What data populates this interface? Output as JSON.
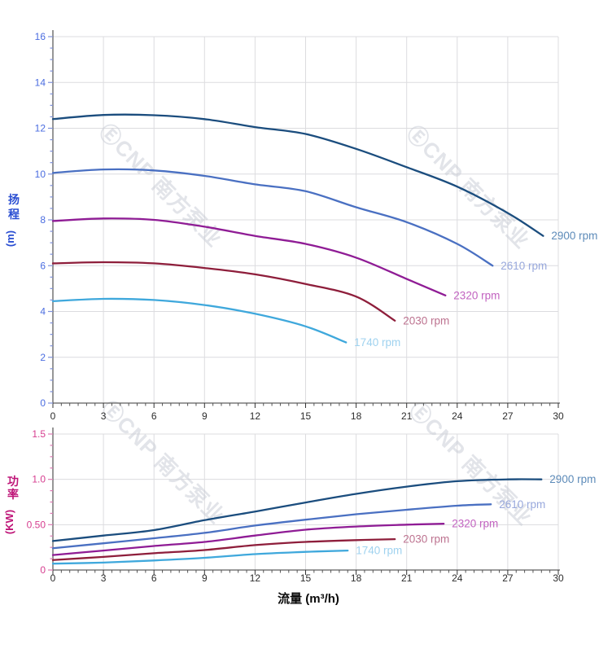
{
  "page": {
    "background": "#ffffff"
  },
  "watermark": {
    "logo_glyph": "Ⓔ",
    "text": "CNP 南方泵业",
    "color": "#c6c9d4",
    "opacity": 0.5
  },
  "chart_data": [
    {
      "type": "line",
      "id": "head-curves",
      "title": "",
      "xlabel": "",
      "ylabel_cjk": "扬程",
      "ylabel_unit": "(m)",
      "xlim": [
        0,
        30
      ],
      "ylim": [
        0,
        16
      ],
      "x_major": 3,
      "x_minor": 0.5,
      "y_major": 2,
      "y_minor": 0.5,
      "x_tick_labels": [
        "0",
        "3",
        "6",
        "9",
        "12",
        "15",
        "18",
        "21",
        "24",
        "27",
        "30"
      ],
      "y_tick_labels": [
        "0",
        "2",
        "4",
        "6",
        "8",
        "10",
        "12",
        "14",
        "16"
      ],
      "grid": true,
      "legend_position": "curve-end-labels",
      "axis_title_color": "#2a4ed2",
      "tick_label_color": "#4a6ce0",
      "tick_mark_color": "#8092dc",
      "x_tick_label_color": "#2d2d2d",
      "series": [
        {
          "name": "2900 rpm",
          "color": "#1b4d7e",
          "label_color": "#5d8bb9",
          "points": [
            [
              0,
              12.4
            ],
            [
              3,
              12.58
            ],
            [
              6,
              12.57
            ],
            [
              9,
              12.4
            ],
            [
              12,
              12.05
            ],
            [
              15,
              11.75
            ],
            [
              18,
              11.1
            ],
            [
              21,
              10.3
            ],
            [
              24,
              9.45
            ],
            [
              27,
              8.3
            ],
            [
              29.1,
              7.3
            ]
          ]
        },
        {
          "name": "2610 rpm",
          "color": "#4a70c2",
          "label_color": "#98a8dc",
          "points": [
            [
              0,
              10.05
            ],
            [
              3,
              10.2
            ],
            [
              6,
              10.16
            ],
            [
              9,
              9.92
            ],
            [
              12,
              9.55
            ],
            [
              15,
              9.25
            ],
            [
              18,
              8.55
            ],
            [
              21,
              7.9
            ],
            [
              24,
              6.95
            ],
            [
              26.1,
              6.0
            ]
          ]
        },
        {
          "name": "2320 rpm",
          "color": "#8f1c95",
          "label_color": "#c263c0",
          "points": [
            [
              0,
              7.95
            ],
            [
              3,
              8.06
            ],
            [
              6,
              8.0
            ],
            [
              9,
              7.7
            ],
            [
              12,
              7.3
            ],
            [
              15,
              6.95
            ],
            [
              18,
              6.35
            ],
            [
              21,
              5.42
            ],
            [
              23.3,
              4.7
            ]
          ]
        },
        {
          "name": "2030 rpm",
          "color": "#8e1e3b",
          "label_color": "#bd7390",
          "points": [
            [
              0,
              6.1
            ],
            [
              3,
              6.15
            ],
            [
              6,
              6.1
            ],
            [
              9,
              5.9
            ],
            [
              12,
              5.62
            ],
            [
              15,
              5.2
            ],
            [
              18,
              4.65
            ],
            [
              20.3,
              3.6
            ]
          ]
        },
        {
          "name": "1740 rpm",
          "color": "#3fa8dc",
          "label_color": "#9fd2ef",
          "points": [
            [
              0,
              4.45
            ],
            [
              3,
              4.55
            ],
            [
              6,
              4.5
            ],
            [
              9,
              4.28
            ],
            [
              12,
              3.9
            ],
            [
              15,
              3.35
            ],
            [
              17.4,
              2.65
            ]
          ]
        }
      ]
    },
    {
      "type": "line",
      "id": "power-curves",
      "title": "",
      "xlabel": "流量 (m³/h)",
      "ylabel_cjk": "功率",
      "ylabel_unit": "(KW)",
      "xlim": [
        0,
        30
      ],
      "ylim": [
        0,
        1.5
      ],
      "x_major": 3,
      "x_minor": 0.5,
      "y_major": 0.5,
      "y_minor": 0.125,
      "x_tick_labels": [
        "0",
        "3",
        "6",
        "9",
        "12",
        "15",
        "18",
        "21",
        "24",
        "27",
        "30"
      ],
      "y_tick_labels": [
        "0",
        "0.50",
        "1.0",
        "1.5"
      ],
      "grid": true,
      "legend_position": "curve-end-labels",
      "axis_title_color": "#bf1578",
      "tick_label_color": "#d63d8f",
      "tick_mark_color": "#dd7ab4",
      "x_tick_label_color": "#2d2d2d",
      "xlabel_color": "#0a0a0a",
      "series": [
        {
          "name": "2900 rpm",
          "color": "#1b4d7e",
          "label_color": "#5d8bb9",
          "points": [
            [
              0,
              0.32
            ],
            [
              3,
              0.38
            ],
            [
              6,
              0.44
            ],
            [
              9,
              0.55
            ],
            [
              12,
              0.645
            ],
            [
              15,
              0.745
            ],
            [
              18,
              0.84
            ],
            [
              21,
              0.92
            ],
            [
              24,
              0.98
            ],
            [
              27,
              1.0
            ],
            [
              29,
              1.0
            ]
          ]
        },
        {
          "name": "2610 rpm",
          "color": "#4a70c2",
          "label_color": "#98a8dc",
          "points": [
            [
              0,
              0.24
            ],
            [
              3,
              0.295
            ],
            [
              6,
              0.35
            ],
            [
              9,
              0.41
            ],
            [
              12,
              0.49
            ],
            [
              15,
              0.555
            ],
            [
              18,
              0.615
            ],
            [
              21,
              0.665
            ],
            [
              24,
              0.71
            ],
            [
              26,
              0.725
            ]
          ]
        },
        {
          "name": "2320 rpm",
          "color": "#8f1c95",
          "label_color": "#c263c0",
          "points": [
            [
              0,
              0.165
            ],
            [
              3,
              0.215
            ],
            [
              6,
              0.265
            ],
            [
              9,
              0.31
            ],
            [
              12,
              0.38
            ],
            [
              15,
              0.445
            ],
            [
              18,
              0.48
            ],
            [
              21,
              0.5
            ],
            [
              23.2,
              0.51
            ]
          ]
        },
        {
          "name": "2030 rpm",
          "color": "#8e1e3b",
          "label_color": "#bd7390",
          "points": [
            [
              0,
              0.11
            ],
            [
              3,
              0.145
            ],
            [
              6,
              0.185
            ],
            [
              9,
              0.22
            ],
            [
              12,
              0.275
            ],
            [
              15,
              0.31
            ],
            [
              18,
              0.33
            ],
            [
              20.3,
              0.34
            ]
          ]
        },
        {
          "name": "1740 rpm",
          "color": "#3fa8dc",
          "label_color": "#9fd2ef",
          "points": [
            [
              0,
              0.07
            ],
            [
              3,
              0.082
            ],
            [
              6,
              0.105
            ],
            [
              9,
              0.135
            ],
            [
              12,
              0.175
            ],
            [
              15,
              0.2
            ],
            [
              17.5,
              0.215
            ]
          ]
        }
      ]
    }
  ]
}
